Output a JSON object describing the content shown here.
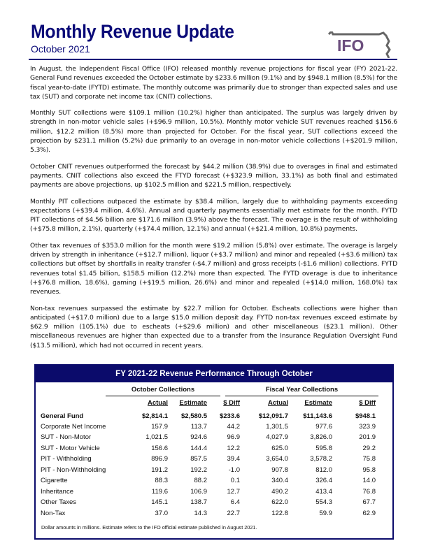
{
  "header": {
    "title": "Monthly Revenue Update",
    "subtitle": "October 2021",
    "logo_text": "IFO"
  },
  "paragraphs": [
    "In August, the Independent Fiscal Office (IFO) released monthly revenue projections for fiscal year (FY) 2021-22. General Fund revenues exceeded the October estimate by $233.6 million (9.1%) and by $948.1 million (8.5%) for the fiscal year-to-date (FYTD) estimate. The monthly outcome was primarily due to stronger than expected sales and use tax (SUT) and corporate net income tax (CNIT) collections.",
    "Monthly SUT collections were $109.1 million (10.2%) higher than anticipated. The surplus was largely driven by strength in non-motor vehicle sales (+$96.9 million, 10.5%). Monthly motor vehicle SUT revenues reached $156.6 million, $12.2 million (8.5%) more than projected for October. For the fiscal year, SUT collections exceed the projection by $231.1 million (5.2%) due primarily to an overage in non-motor vehicle collections (+$201.9 million, 5.3%).",
    "October CNIT revenues outperformed the forecast by $44.2 million (38.9%) due to overages in final and estimated payments. CNIT collections also exceed the FTYD forecast (+$323.9 million, 33.1%) as both final and estimated payments are above projections, up $102.5 million and $221.5 million, respectively.",
    "Monthly PIT collections outpaced the estimate by $38.4 million, largely due to withholding payments exceeding expectations (+$39.4 million, 4.6%). Annual and quarterly payments essentially met estimate for the month. FYTD PIT collections of $4.56 billion are $171.6 million (3.9%) above the forecast. The overage is the result of withholding (+$75.8 million, 2.1%), quarterly (+$74.4 million, 12.1%) and annual (+$21.4 million, 10.8%) payments.",
    "Other tax revenues of $353.0 million for the month were $19.2 million (5.8%) over estimate. The overage is largely driven by strength in inheritance (+$12.7 million), liquor (+$3.7 million) and minor and repealed (+$3.6 million) tax collections but offset by shortfalls in realty transfer (-$4.7 million) and gross receipts (-$1.6 million) collections. FYTD revenues total $1.45 billion, $158.5 million (12.2%) more than expected. The FYTD overage is due to inheritance (+$76.8 million, 18.6%), gaming (+$19.5 million, 26.6%) and minor and repealed (+$14.0 million, 168.0%) tax revenues.",
    "Non-tax revenues surpassed the estimate by $22.7 million for October. Escheats collections were higher than anticipated (+$17.0 million) due to a large $15.0 million deposit day. FYTD non-tax revenues exceed estimate by $62.9 million (105.1%) due to escheats (+$29.6 million) and other miscellaneous ($23.1 million). Other miscellaneous revenues are higher than expected due to a transfer from the Insurance Regulation Oversight Fund ($13.5 million), which had not occurred in recent years."
  ],
  "table": {
    "title": "FY 2021-22 Revenue Performance Through October",
    "groups": [
      "October Collections",
      "Fiscal Year Collections"
    ],
    "columns": [
      "Actual",
      "Estimate",
      "$ Diff",
      "Actual",
      "Estimate",
      "$ Diff"
    ],
    "rows": [
      {
        "label": "General Fund",
        "values": [
          "$2,814.1",
          "$2,580.5",
          "$233.6",
          "$12,091.7",
          "$11,143.6",
          "$948.1"
        ]
      },
      {
        "label": "Corporate Net Income",
        "values": [
          "157.9",
          "113.7",
          "44.2",
          "1,301.5",
          "977.6",
          "323.9"
        ]
      },
      {
        "label": "SUT - Non-Motor",
        "values": [
          "1,021.5",
          "924.6",
          "96.9",
          "4,027.9",
          "3,826.0",
          "201.9"
        ]
      },
      {
        "label": "SUT - Motor Vehicle",
        "values": [
          "156.6",
          "144.4",
          "12.2",
          "625.0",
          "595.8",
          "29.2"
        ]
      },
      {
        "label": "PIT - Withholding",
        "values": [
          "896.9",
          "857.5",
          "39.4",
          "3,654.0",
          "3,578.2",
          "75.8"
        ]
      },
      {
        "label": "PIT - Non-Withholding",
        "values": [
          "191.2",
          "192.2",
          "-1.0",
          "907.8",
          "812.0",
          "95.8"
        ]
      },
      {
        "label": "Cigarette",
        "values": [
          "88.3",
          "88.2",
          "0.1",
          "340.4",
          "326.4",
          "14.0"
        ]
      },
      {
        "label": "Inheritance",
        "values": [
          "119.6",
          "106.9",
          "12.7",
          "490.2",
          "413.4",
          "76.8"
        ]
      },
      {
        "label": "Other Taxes",
        "values": [
          "145.1",
          "138.7",
          "6.4",
          "622.0",
          "554.3",
          "67.7"
        ]
      },
      {
        "label": "Non-Tax",
        "values": [
          "37.0",
          "14.3",
          "22.7",
          "122.8",
          "59.9",
          "62.9"
        ]
      }
    ],
    "footnote": "Dollar amounts in millions. Estimate refers to the IFO official estimate published in August 2021."
  },
  "colors": {
    "navy": "#0b0b6b",
    "logo": "#6b4d7d"
  }
}
